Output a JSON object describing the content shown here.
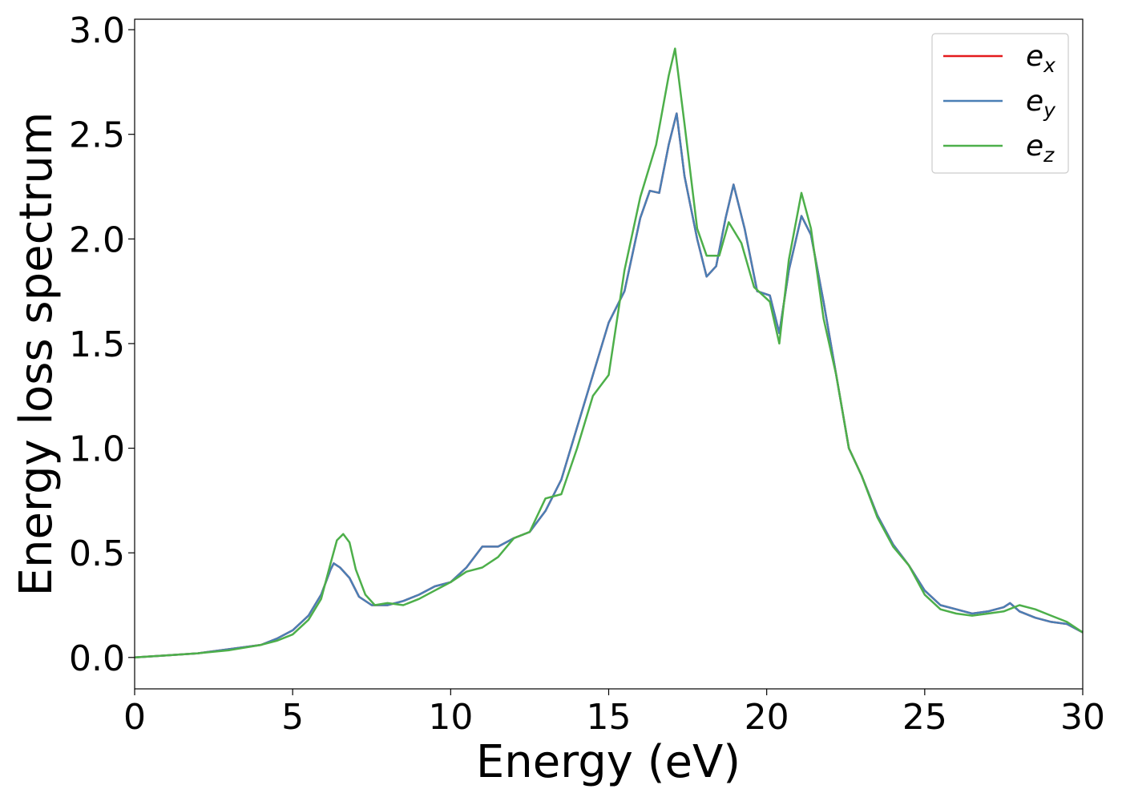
{
  "chart_data": {
    "type": "line",
    "title": "",
    "xlabel": "Energy (eV)",
    "ylabel": "Energy loss spectrum",
    "xlim": [
      0,
      30
    ],
    "ylim": [
      -0.15,
      3.05
    ],
    "xticks": [
      0,
      5,
      10,
      15,
      20,
      25,
      30
    ],
    "xtick_labels": [
      "0",
      "5",
      "10",
      "15",
      "20",
      "25",
      "30"
    ],
    "yticks": [
      0.0,
      0.5,
      1.0,
      1.5,
      2.0,
      2.5,
      3.0
    ],
    "ytick_labels": [
      "0.0",
      "0.5",
      "1.0",
      "1.5",
      "2.0",
      "2.5",
      "3.0"
    ],
    "grid": false,
    "legend_position": "top-right",
    "series": [
      {
        "label_base": "e",
        "label_sub": "x",
        "color": "#e41a1c",
        "points": [
          [
            0,
            0.0
          ],
          [
            1,
            0.01
          ],
          [
            2,
            0.02
          ],
          [
            3,
            0.04
          ],
          [
            4,
            0.06
          ],
          [
            4.5,
            0.09
          ],
          [
            5,
            0.13
          ],
          [
            5.5,
            0.2
          ],
          [
            5.9,
            0.3
          ],
          [
            6.2,
            0.42
          ],
          [
            6.3,
            0.45
          ],
          [
            6.5,
            0.43
          ],
          [
            6.8,
            0.38
          ],
          [
            7.1,
            0.29
          ],
          [
            7.5,
            0.25
          ],
          [
            8,
            0.25
          ],
          [
            8.5,
            0.27
          ],
          [
            9,
            0.3
          ],
          [
            9.5,
            0.34
          ],
          [
            10,
            0.36
          ],
          [
            10.5,
            0.43
          ],
          [
            11,
            0.53
          ],
          [
            11.5,
            0.53
          ],
          [
            12,
            0.57
          ],
          [
            12.5,
            0.6
          ],
          [
            13,
            0.7
          ],
          [
            13.5,
            0.85
          ],
          [
            14,
            1.1
          ],
          [
            14.5,
            1.35
          ],
          [
            15,
            1.6
          ],
          [
            15.5,
            1.75
          ],
          [
            16,
            2.1
          ],
          [
            16.3,
            2.23
          ],
          [
            16.6,
            2.22
          ],
          [
            16.9,
            2.45
          ],
          [
            17.15,
            2.6
          ],
          [
            17.4,
            2.3
          ],
          [
            17.8,
            2.0
          ],
          [
            18.1,
            1.82
          ],
          [
            18.4,
            1.87
          ],
          [
            18.7,
            2.1
          ],
          [
            18.95,
            2.26
          ],
          [
            19.3,
            2.05
          ],
          [
            19.7,
            1.75
          ],
          [
            20.1,
            1.73
          ],
          [
            20.4,
            1.55
          ],
          [
            20.7,
            1.85
          ],
          [
            21.1,
            2.11
          ],
          [
            21.4,
            2.02
          ],
          [
            21.8,
            1.7
          ],
          [
            22.2,
            1.35
          ],
          [
            22.6,
            1.0
          ],
          [
            23,
            0.87
          ],
          [
            23.5,
            0.68
          ],
          [
            24,
            0.54
          ],
          [
            24.5,
            0.44
          ],
          [
            25,
            0.32
          ],
          [
            25.5,
            0.25
          ],
          [
            26,
            0.23
          ],
          [
            26.5,
            0.21
          ],
          [
            27,
            0.22
          ],
          [
            27.5,
            0.24
          ],
          [
            27.7,
            0.26
          ],
          [
            28,
            0.22
          ],
          [
            28.5,
            0.19
          ],
          [
            29,
            0.17
          ],
          [
            29.5,
            0.16
          ],
          [
            30,
            0.12
          ]
        ]
      },
      {
        "label_base": "e",
        "label_sub": "y",
        "color": "#4a7fb5",
        "points": [
          [
            0,
            0.0
          ],
          [
            1,
            0.01
          ],
          [
            2,
            0.02
          ],
          [
            3,
            0.04
          ],
          [
            4,
            0.06
          ],
          [
            4.5,
            0.09
          ],
          [
            5,
            0.13
          ],
          [
            5.5,
            0.2
          ],
          [
            5.9,
            0.3
          ],
          [
            6.2,
            0.42
          ],
          [
            6.3,
            0.45
          ],
          [
            6.5,
            0.43
          ],
          [
            6.8,
            0.38
          ],
          [
            7.1,
            0.29
          ],
          [
            7.5,
            0.25
          ],
          [
            8,
            0.25
          ],
          [
            8.5,
            0.27
          ],
          [
            9,
            0.3
          ],
          [
            9.5,
            0.34
          ],
          [
            10,
            0.36
          ],
          [
            10.5,
            0.43
          ],
          [
            11,
            0.53
          ],
          [
            11.5,
            0.53
          ],
          [
            12,
            0.57
          ],
          [
            12.5,
            0.6
          ],
          [
            13,
            0.7
          ],
          [
            13.5,
            0.85
          ],
          [
            14,
            1.1
          ],
          [
            14.5,
            1.35
          ],
          [
            15,
            1.6
          ],
          [
            15.5,
            1.75
          ],
          [
            16,
            2.1
          ],
          [
            16.3,
            2.23
          ],
          [
            16.6,
            2.22
          ],
          [
            16.9,
            2.45
          ],
          [
            17.15,
            2.6
          ],
          [
            17.4,
            2.3
          ],
          [
            17.8,
            2.0
          ],
          [
            18.1,
            1.82
          ],
          [
            18.4,
            1.87
          ],
          [
            18.7,
            2.1
          ],
          [
            18.95,
            2.26
          ],
          [
            19.3,
            2.05
          ],
          [
            19.7,
            1.75
          ],
          [
            20.1,
            1.73
          ],
          [
            20.4,
            1.55
          ],
          [
            20.7,
            1.85
          ],
          [
            21.1,
            2.11
          ],
          [
            21.4,
            2.02
          ],
          [
            21.8,
            1.7
          ],
          [
            22.2,
            1.35
          ],
          [
            22.6,
            1.0
          ],
          [
            23,
            0.87
          ],
          [
            23.5,
            0.68
          ],
          [
            24,
            0.54
          ],
          [
            24.5,
            0.44
          ],
          [
            25,
            0.32
          ],
          [
            25.5,
            0.25
          ],
          [
            26,
            0.23
          ],
          [
            26.5,
            0.21
          ],
          [
            27,
            0.22
          ],
          [
            27.5,
            0.24
          ],
          [
            27.7,
            0.26
          ],
          [
            28,
            0.22
          ],
          [
            28.5,
            0.19
          ],
          [
            29,
            0.17
          ],
          [
            29.5,
            0.16
          ],
          [
            30,
            0.12
          ]
        ]
      },
      {
        "label_base": "e",
        "label_sub": "z",
        "color": "#4daf4a",
        "points": [
          [
            0,
            0.0
          ],
          [
            1,
            0.01
          ],
          [
            2,
            0.02
          ],
          [
            3,
            0.035
          ],
          [
            4,
            0.06
          ],
          [
            4.5,
            0.08
          ],
          [
            5,
            0.11
          ],
          [
            5.5,
            0.18
          ],
          [
            5.9,
            0.28
          ],
          [
            6.2,
            0.45
          ],
          [
            6.4,
            0.56
          ],
          [
            6.6,
            0.59
          ],
          [
            6.8,
            0.55
          ],
          [
            7.0,
            0.42
          ],
          [
            7.3,
            0.3
          ],
          [
            7.6,
            0.25
          ],
          [
            8,
            0.26
          ],
          [
            8.5,
            0.25
          ],
          [
            9,
            0.28
          ],
          [
            9.5,
            0.32
          ],
          [
            10,
            0.36
          ],
          [
            10.5,
            0.41
          ],
          [
            11,
            0.43
          ],
          [
            11.5,
            0.48
          ],
          [
            12,
            0.57
          ],
          [
            12.5,
            0.6
          ],
          [
            13,
            0.76
          ],
          [
            13.5,
            0.78
          ],
          [
            14,
            1.0
          ],
          [
            14.5,
            1.25
          ],
          [
            15,
            1.35
          ],
          [
            15.5,
            1.85
          ],
          [
            16,
            2.2
          ],
          [
            16.5,
            2.45
          ],
          [
            16.9,
            2.78
          ],
          [
            17.1,
            2.91
          ],
          [
            17.4,
            2.55
          ],
          [
            17.8,
            2.05
          ],
          [
            18.1,
            1.92
          ],
          [
            18.5,
            1.92
          ],
          [
            18.8,
            2.08
          ],
          [
            19.2,
            1.98
          ],
          [
            19.6,
            1.77
          ],
          [
            20.1,
            1.7
          ],
          [
            20.4,
            1.5
          ],
          [
            20.7,
            1.9
          ],
          [
            21.1,
            2.22
          ],
          [
            21.4,
            2.05
          ],
          [
            21.8,
            1.62
          ],
          [
            22.2,
            1.35
          ],
          [
            22.6,
            1.0
          ],
          [
            23,
            0.87
          ],
          [
            23.5,
            0.67
          ],
          [
            24,
            0.53
          ],
          [
            24.5,
            0.44
          ],
          [
            25,
            0.3
          ],
          [
            25.5,
            0.23
          ],
          [
            26,
            0.21
          ],
          [
            26.5,
            0.2
          ],
          [
            27,
            0.21
          ],
          [
            27.5,
            0.22
          ],
          [
            28,
            0.25
          ],
          [
            28.5,
            0.23
          ],
          [
            29,
            0.2
          ],
          [
            29.5,
            0.17
          ],
          [
            30,
            0.12
          ]
        ]
      }
    ]
  }
}
